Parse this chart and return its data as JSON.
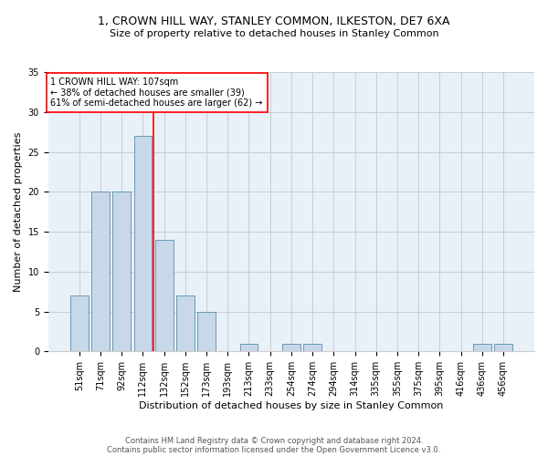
{
  "title1": "1, CROWN HILL WAY, STANLEY COMMON, ILKESTON, DE7 6XA",
  "title2": "Size of property relative to detached houses in Stanley Common",
  "xlabel": "Distribution of detached houses by size in Stanley Common",
  "ylabel": "Number of detached properties",
  "footnote1": "Contains HM Land Registry data © Crown copyright and database right 2024.",
  "footnote2": "Contains public sector information licensed under the Open Government Licence v3.0.",
  "annotation_line1": "1 CROWN HILL WAY: 107sqm",
  "annotation_line2": "← 38% of detached houses are smaller (39)",
  "annotation_line3": "61% of semi-detached houses are larger (62) →",
  "bar_labels": [
    "51sqm",
    "71sqm",
    "92sqm",
    "112sqm",
    "132sqm",
    "152sqm",
    "173sqm",
    "193sqm",
    "213sqm",
    "233sqm",
    "254sqm",
    "274sqm",
    "294sqm",
    "314sqm",
    "335sqm",
    "355sqm",
    "375sqm",
    "395sqm",
    "416sqm",
    "436sqm",
    "456sqm"
  ],
  "bar_values": [
    7,
    20,
    20,
    27,
    14,
    7,
    5,
    0,
    1,
    0,
    1,
    1,
    0,
    0,
    0,
    0,
    0,
    0,
    0,
    1,
    1
  ],
  "bar_color": "#c8d8e8",
  "bar_edge_color": "#6699bb",
  "grid_color": "#cccccc",
  "background_color": "#e8f0f8",
  "red_line_x": 3.5,
  "ylim": [
    0,
    35
  ],
  "yticks": [
    0,
    5,
    10,
    15,
    20,
    25,
    30,
    35
  ],
  "red_line_color": "red",
  "title1_fontsize": 9,
  "title2_fontsize": 8,
  "xlabel_fontsize": 8,
  "ylabel_fontsize": 8,
  "tick_fontsize": 7,
  "annotation_fontsize": 7,
  "footnote_fontsize": 6
}
